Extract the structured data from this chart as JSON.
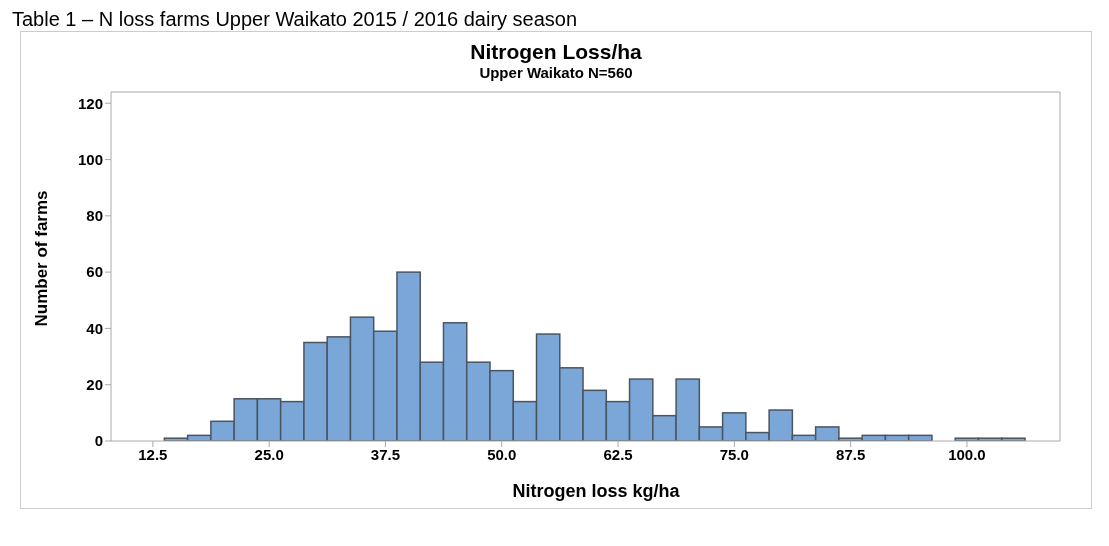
{
  "chart_data": {
    "type": "histogram",
    "title": "Nitrogen Loss/ha",
    "subtitle": "Upper Waikato N=560",
    "xlabel": "Nitrogen loss kg/ha",
    "ylabel": "Number of farms",
    "annotations": [
      "Table 1 – N loss farms Upper Waikato 2015 / 2016 dairy season"
    ],
    "bins": [
      8.75,
      11.25,
      13.75,
      16.25,
      18.75,
      21.25,
      23.75,
      26.25,
      28.75,
      31.25,
      33.75,
      36.25,
      38.75,
      41.25,
      43.75,
      46.25,
      48.75,
      51.25,
      53.75,
      56.25,
      58.75,
      61.25,
      63.75,
      66.25,
      68.75,
      71.25,
      73.75,
      76.25,
      78.75,
      81.25,
      83.75,
      86.25,
      88.75,
      91.25,
      93.75,
      96.25,
      98.75,
      101.25,
      103.75,
      106.25,
      108.75
    ],
    "values": [
      0,
      0,
      1,
      2,
      7,
      15,
      15,
      14,
      35,
      37,
      44,
      39,
      60,
      28,
      42,
      28,
      25,
      14,
      38,
      26,
      18,
      14,
      22,
      9,
      22,
      5,
      10,
      3,
      11,
      2,
      5,
      1,
      2,
      2,
      2,
      0,
      1,
      1,
      1,
      0
    ],
    "color": "#7ba6d8",
    "xlim": [
      8,
      110
    ],
    "xticks": [
      {
        "value": 12.5,
        "label": "12.5"
      },
      {
        "value": 25,
        "label": "25.0"
      },
      {
        "value": 37.5,
        "label": "37.5"
      },
      {
        "value": 50,
        "label": "50.0"
      },
      {
        "value": 62.5,
        "label": "62.5"
      },
      {
        "value": 75,
        "label": "75.0"
      },
      {
        "value": 87.5,
        "label": "87.5"
      },
      {
        "value": 100,
        "label": "100.0"
      }
    ],
    "ylim": [
      0,
      124
    ],
    "yticks": [
      0,
      20,
      40,
      60,
      80,
      100,
      120
    ],
    "grid": false,
    "legend": false
  }
}
